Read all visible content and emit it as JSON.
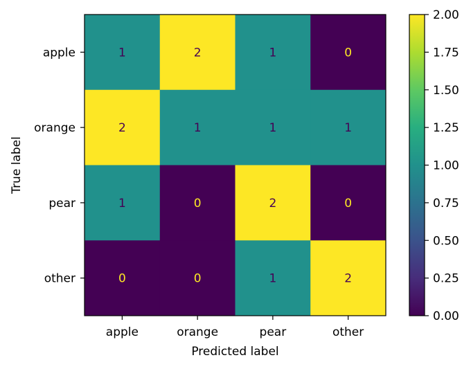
{
  "chart_data": {
    "type": "heatmap",
    "xlabel": "Predicted label",
    "ylabel": "True label",
    "x_categories": [
      "apple",
      "orange",
      "pear",
      "other"
    ],
    "y_categories": [
      "apple",
      "orange",
      "pear",
      "other"
    ],
    "values": [
      [
        1,
        2,
        1,
        0
      ],
      [
        2,
        1,
        1,
        1
      ],
      [
        1,
        0,
        2,
        0
      ],
      [
        0,
        0,
        1,
        2
      ]
    ],
    "colormap": "viridis",
    "color_range": [
      0,
      2
    ],
    "colorbar_ticks": [
      "0.00",
      "0.25",
      "0.50",
      "0.75",
      "1.00",
      "1.25",
      "1.50",
      "1.75",
      "2.00"
    ],
    "colors": {
      "low": "#440154",
      "mid": "#21918c",
      "high": "#fde725"
    }
  }
}
